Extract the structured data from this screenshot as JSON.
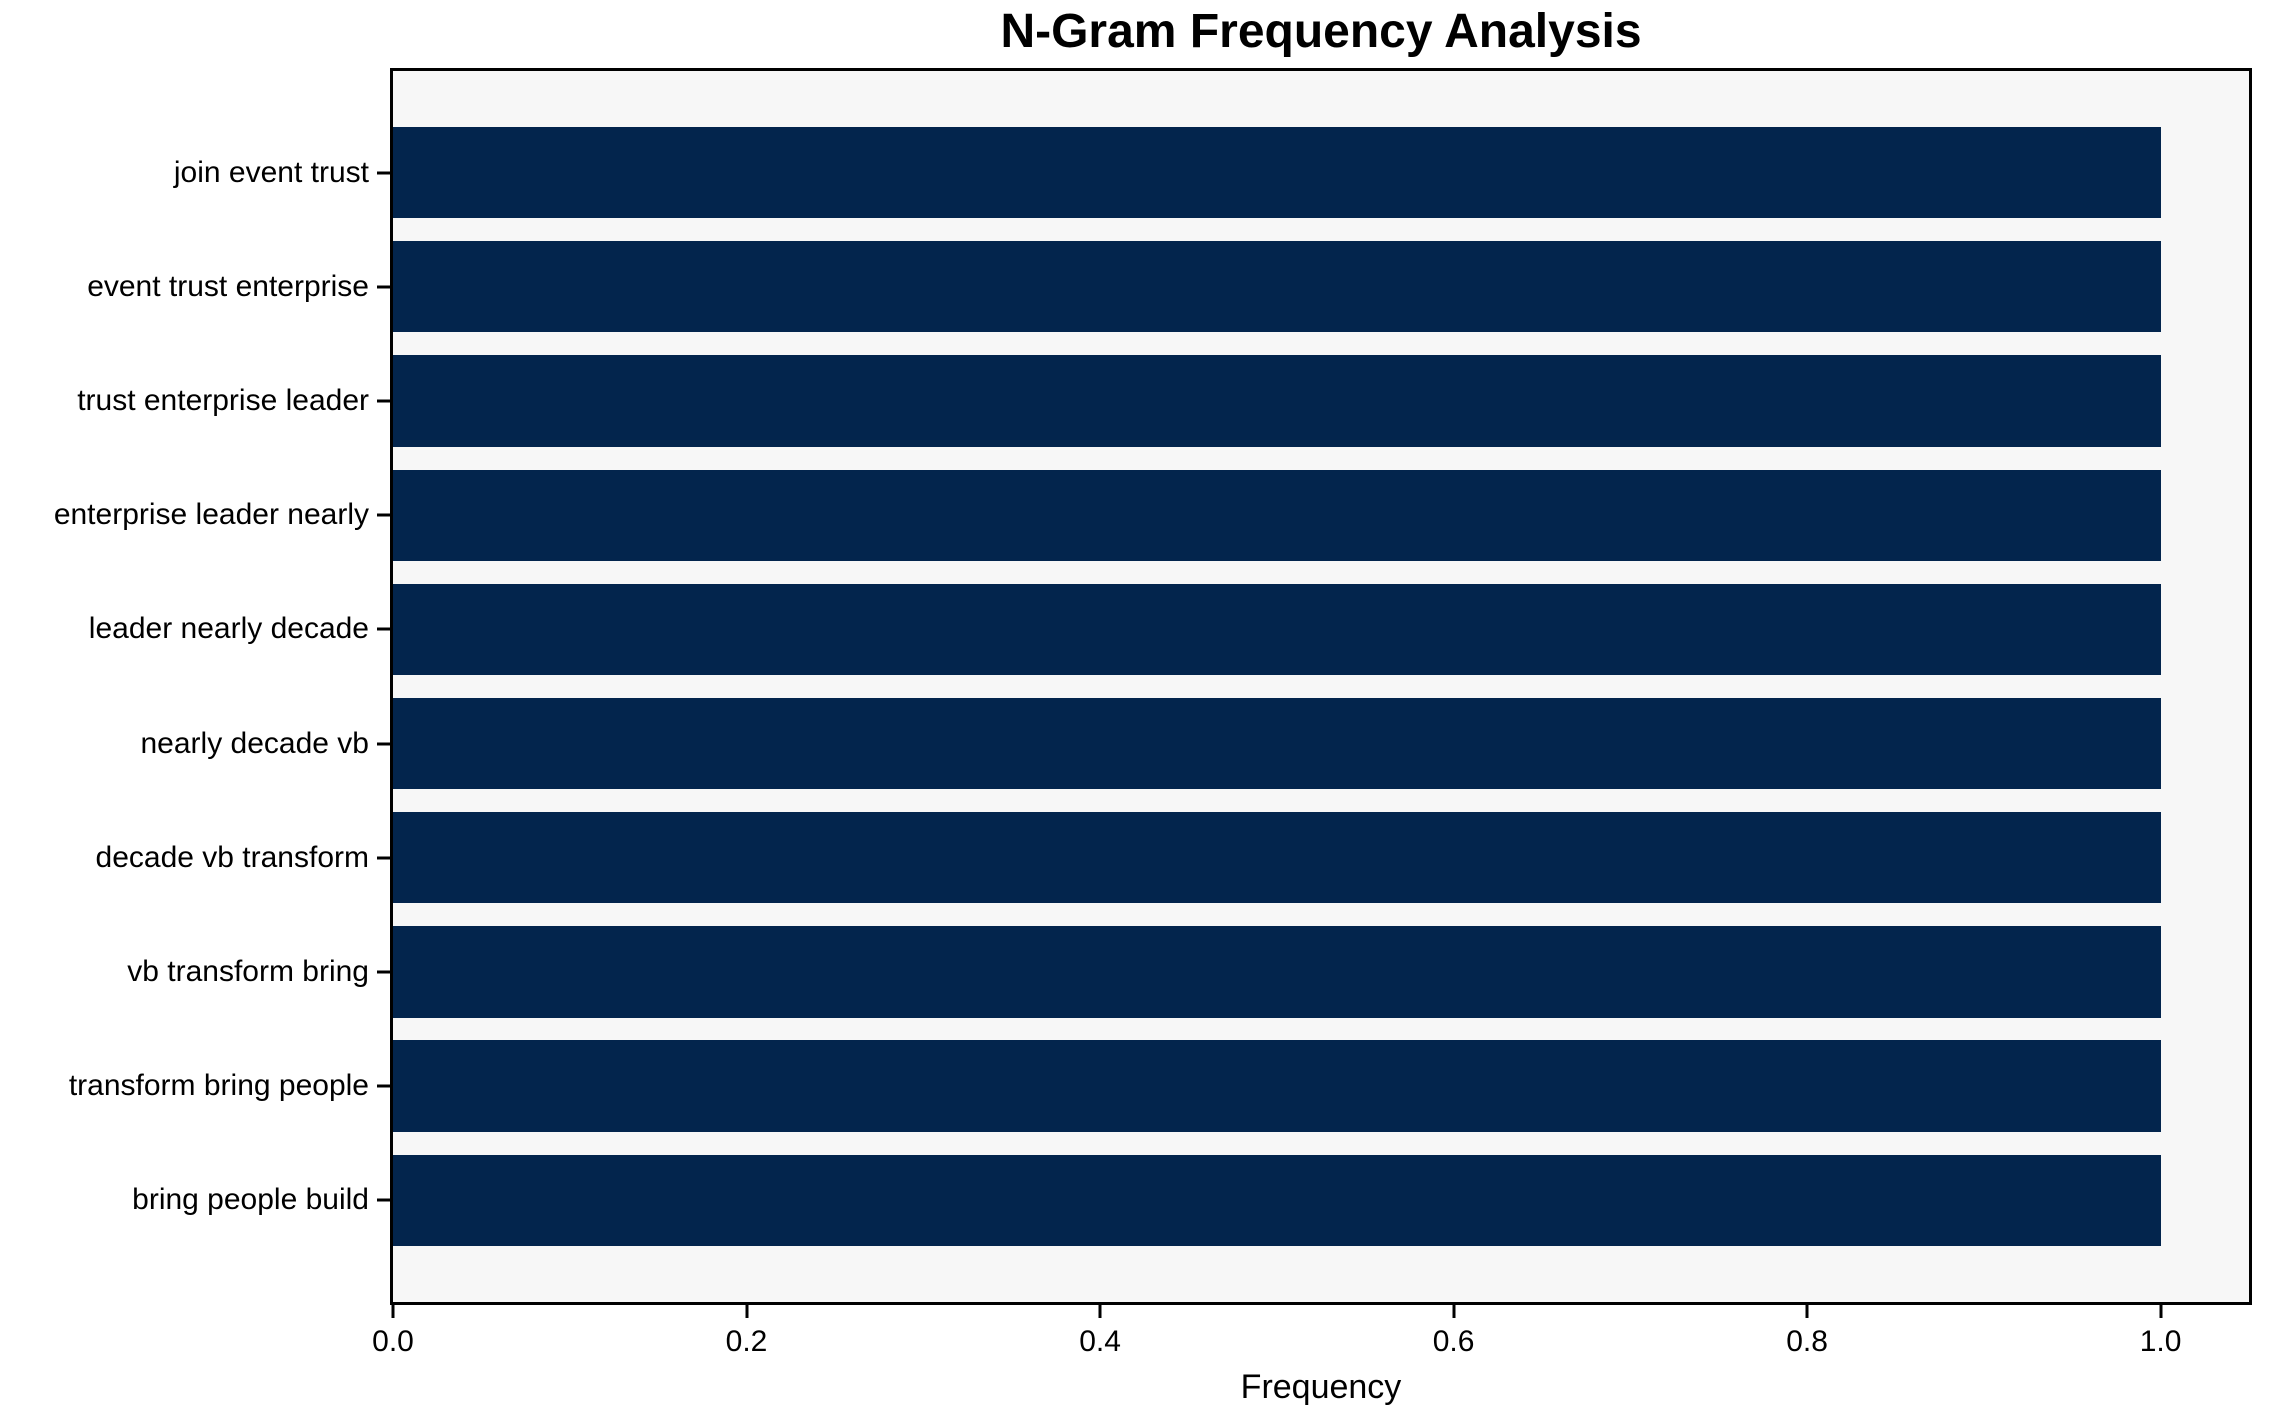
{
  "chart_data": {
    "type": "bar",
    "orientation": "horizontal",
    "title": "N-Gram Frequency Analysis",
    "xlabel": "Frequency",
    "ylabel": "",
    "categories": [
      "join event trust",
      "event trust enterprise",
      "trust enterprise leader",
      "enterprise leader nearly",
      "leader nearly decade",
      "nearly decade vb",
      "decade vb transform",
      "vb transform bring",
      "transform bring people",
      "bring people build"
    ],
    "values": [
      1.0,
      1.0,
      1.0,
      1.0,
      1.0,
      1.0,
      1.0,
      1.0,
      1.0,
      1.0
    ],
    "x_ticks": [
      0.0,
      0.2,
      0.4,
      0.6,
      0.8,
      1.0
    ],
    "x_tick_labels": [
      "0.0",
      "0.2",
      "0.4",
      "0.6",
      "0.8",
      "1.0"
    ],
    "xlim": [
      0,
      1.05
    ],
    "grid": false,
    "legend": null,
    "colors": {
      "bar": "#03254d",
      "plot_background": "#f7f7f7",
      "figure_background": "#ffffff",
      "text": "#000000",
      "spine": "#000000"
    }
  }
}
